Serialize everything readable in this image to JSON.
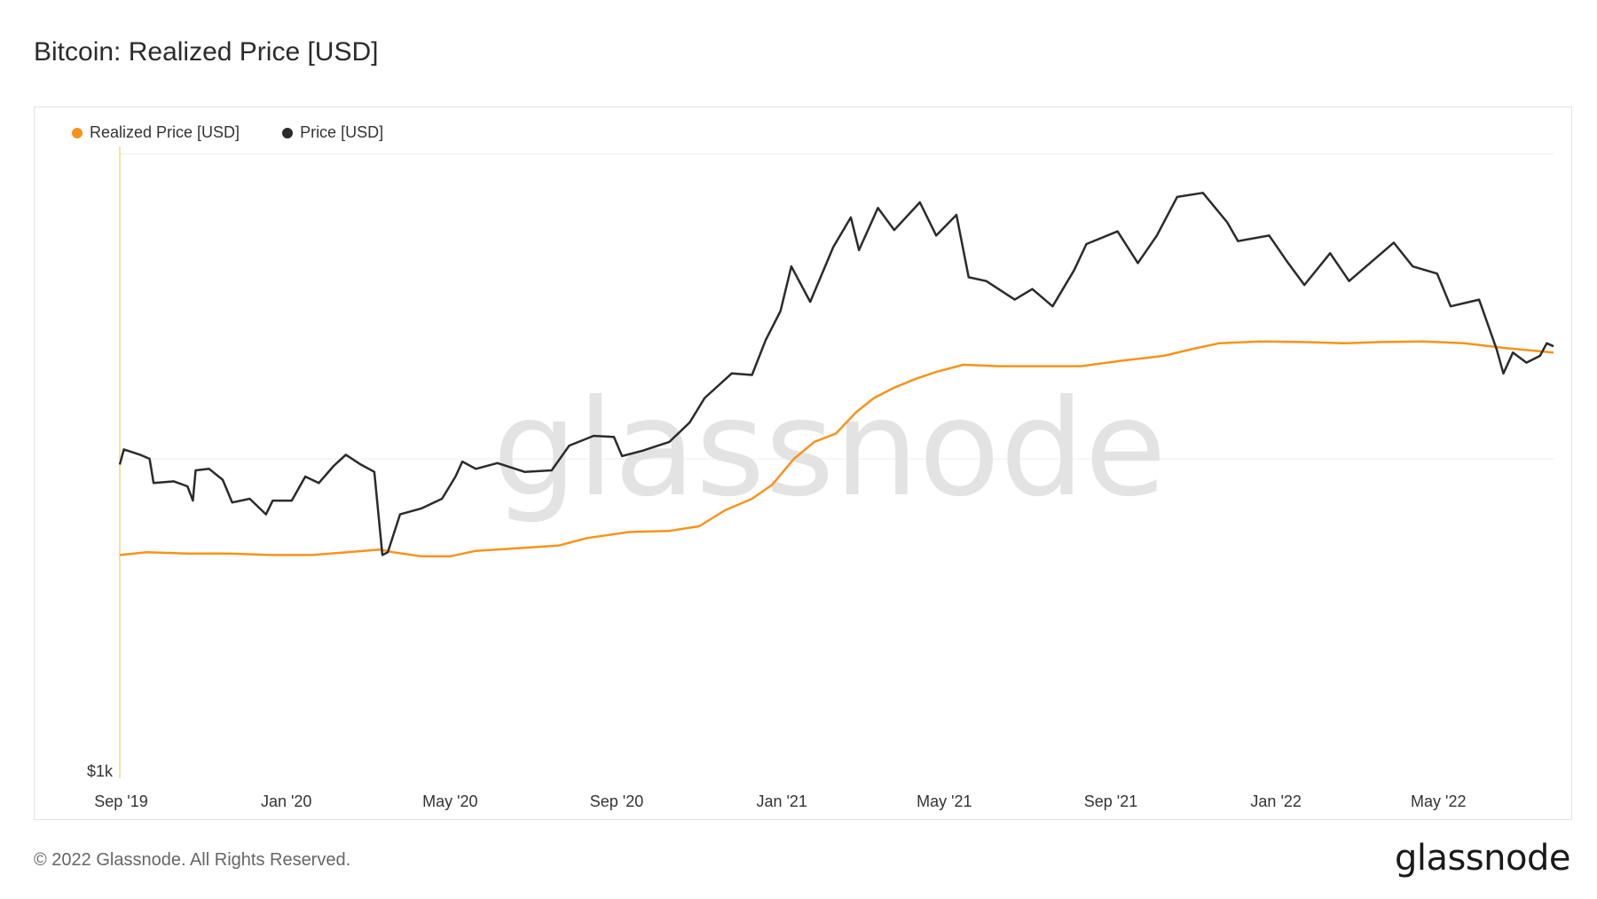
{
  "title": "Bitcoin: Realized Price [USD]",
  "footer": {
    "copyright": "© 2022 Glassnode. All Rights Reserved.",
    "logo": "glassnode"
  },
  "watermark": "glassnode",
  "colors": {
    "realized": "#f7931a",
    "price": "#2b2b2b",
    "axis": "#f2c14e",
    "grid": "#eeeeee"
  },
  "chart_data": {
    "type": "line",
    "title": "Bitcoin: Realized Price [USD]",
    "y_scale": "log",
    "ylim": [
      1000,
      95000
    ],
    "y_tick_labels": [
      {
        "value": 1000,
        "label": "$1k"
      }
    ],
    "x_tick_labels": [
      {
        "date": "2019-09-01",
        "label": "Sep '19"
      },
      {
        "date": "2020-01-01",
        "label": "Jan '20"
      },
      {
        "date": "2020-05-01",
        "label": "May '20"
      },
      {
        "date": "2020-09-01",
        "label": "Sep '20"
      },
      {
        "date": "2021-01-01",
        "label": "Jan '21"
      },
      {
        "date": "2021-05-01",
        "label": "May '21"
      },
      {
        "date": "2021-09-01",
        "label": "Sep '21"
      },
      {
        "date": "2022-01-01",
        "label": "Jan '22"
      },
      {
        "date": "2022-05-01",
        "label": "May '22"
      }
    ],
    "xlim": [
      "2019-08-31",
      "2022-07-25"
    ],
    "legend_position": "top-left",
    "series": [
      {
        "name": "Realized Price [USD]",
        "color": "#f7931a",
        "points": [
          [
            "2019-08-31",
            5000
          ],
          [
            "2019-09-20",
            5100
          ],
          [
            "2019-10-20",
            5050
          ],
          [
            "2019-11-20",
            5050
          ],
          [
            "2019-12-20",
            5000
          ],
          [
            "2020-01-20",
            5000
          ],
          [
            "2020-02-15",
            5100
          ],
          [
            "2020-03-10",
            5200
          ],
          [
            "2020-03-20",
            5100
          ],
          [
            "2020-04-10",
            4950
          ],
          [
            "2020-05-01",
            4950
          ],
          [
            "2020-05-20",
            5150
          ],
          [
            "2020-06-20",
            5250
          ],
          [
            "2020-07-20",
            5350
          ],
          [
            "2020-08-10",
            5650
          ],
          [
            "2020-09-10",
            5900
          ],
          [
            "2020-10-10",
            5950
          ],
          [
            "2020-11-01",
            6150
          ],
          [
            "2020-11-20",
            6900
          ],
          [
            "2020-12-10",
            7500
          ],
          [
            "2020-12-25",
            8300
          ],
          [
            "2021-01-10",
            10000
          ],
          [
            "2021-01-25",
            11300
          ],
          [
            "2021-02-10",
            12000
          ],
          [
            "2021-02-25",
            14000
          ],
          [
            "2021-03-10",
            15500
          ],
          [
            "2021-03-25",
            16700
          ],
          [
            "2021-04-10",
            17800
          ],
          [
            "2021-04-25",
            18700
          ],
          [
            "2021-05-15",
            19700
          ],
          [
            "2021-06-10",
            19500
          ],
          [
            "2021-07-10",
            19500
          ],
          [
            "2021-08-10",
            19500
          ],
          [
            "2021-09-10",
            20300
          ],
          [
            "2021-10-10",
            21000
          ],
          [
            "2021-11-01",
            22100
          ],
          [
            "2021-11-20",
            23000
          ],
          [
            "2021-12-20",
            23300
          ],
          [
            "2022-01-20",
            23200
          ],
          [
            "2022-02-20",
            23000
          ],
          [
            "2022-03-20",
            23200
          ],
          [
            "2022-04-20",
            23300
          ],
          [
            "2022-05-20",
            23000
          ],
          [
            "2022-06-20",
            22200
          ],
          [
            "2022-07-25",
            21500
          ]
        ]
      },
      {
        "name": "Price [USD]",
        "color": "#2b2b2b",
        "points": [
          [
            "2019-08-31",
            9600
          ],
          [
            "2019-09-03",
            10700
          ],
          [
            "2019-09-15",
            10300
          ],
          [
            "2019-09-22",
            10000
          ],
          [
            "2019-09-25",
            8400
          ],
          [
            "2019-10-10",
            8500
          ],
          [
            "2019-10-20",
            8200
          ],
          [
            "2019-10-24",
            7400
          ],
          [
            "2019-10-26",
            9200
          ],
          [
            "2019-11-05",
            9300
          ],
          [
            "2019-11-15",
            8600
          ],
          [
            "2019-11-22",
            7300
          ],
          [
            "2019-12-05",
            7500
          ],
          [
            "2019-12-17",
            6700
          ],
          [
            "2019-12-22",
            7400
          ],
          [
            "2020-01-05",
            7400
          ],
          [
            "2020-01-15",
            8800
          ],
          [
            "2020-01-25",
            8400
          ],
          [
            "2020-02-05",
            9500
          ],
          [
            "2020-02-14",
            10300
          ],
          [
            "2020-02-25",
            9600
          ],
          [
            "2020-03-06",
            9100
          ],
          [
            "2020-03-12",
            5000
          ],
          [
            "2020-03-16",
            5100
          ],
          [
            "2020-03-25",
            6700
          ],
          [
            "2020-04-10",
            7000
          ],
          [
            "2020-04-25",
            7500
          ],
          [
            "2020-05-05",
            8800
          ],
          [
            "2020-05-10",
            9800
          ],
          [
            "2020-05-20",
            9300
          ],
          [
            "2020-06-05",
            9700
          ],
          [
            "2020-06-25",
            9100
          ],
          [
            "2020-07-15",
            9200
          ],
          [
            "2020-07-28",
            11000
          ],
          [
            "2020-08-15",
            11800
          ],
          [
            "2020-08-30",
            11700
          ],
          [
            "2020-09-05",
            10200
          ],
          [
            "2020-09-20",
            10600
          ],
          [
            "2020-10-10",
            11300
          ],
          [
            "2020-10-25",
            13000
          ],
          [
            "2020-11-05",
            15500
          ],
          [
            "2020-11-25",
            18500
          ],
          [
            "2020-12-10",
            18300
          ],
          [
            "2020-12-20",
            23500
          ],
          [
            "2020-12-31",
            29000
          ],
          [
            "2021-01-08",
            40000
          ],
          [
            "2021-01-22",
            31000
          ],
          [
            "2021-02-08",
            46000
          ],
          [
            "2021-02-21",
            57000
          ],
          [
            "2021-02-27",
            45000
          ],
          [
            "2021-03-13",
            61000
          ],
          [
            "2021-03-25",
            52000
          ],
          [
            "2021-04-13",
            63500
          ],
          [
            "2021-04-25",
            50000
          ],
          [
            "2021-05-10",
            58000
          ],
          [
            "2021-05-19",
            37000
          ],
          [
            "2021-06-01",
            36000
          ],
          [
            "2021-06-22",
            31500
          ],
          [
            "2021-07-05",
            34000
          ],
          [
            "2021-07-20",
            30000
          ],
          [
            "2021-08-05",
            39000
          ],
          [
            "2021-08-14",
            47000
          ],
          [
            "2021-09-06",
            51500
          ],
          [
            "2021-09-21",
            41000
          ],
          [
            "2021-10-05",
            50000
          ],
          [
            "2021-10-20",
            66000
          ],
          [
            "2021-11-08",
            68000
          ],
          [
            "2021-11-26",
            55000
          ],
          [
            "2021-12-04",
            48000
          ],
          [
            "2021-12-27",
            50000
          ],
          [
            "2022-01-10",
            41000
          ],
          [
            "2022-01-22",
            35000
          ],
          [
            "2022-02-10",
            44000
          ],
          [
            "2022-02-24",
            36000
          ],
          [
            "2022-03-29",
            47500
          ],
          [
            "2022-04-12",
            40000
          ],
          [
            "2022-04-30",
            38000
          ],
          [
            "2022-05-10",
            30000
          ],
          [
            "2022-05-31",
            31500
          ],
          [
            "2022-06-13",
            22000
          ],
          [
            "2022-06-18",
            18500
          ],
          [
            "2022-06-25",
            21500
          ],
          [
            "2022-07-05",
            20000
          ],
          [
            "2022-07-15",
            21000
          ],
          [
            "2022-07-20",
            23000
          ],
          [
            "2022-07-25",
            22500
          ]
        ]
      }
    ]
  }
}
